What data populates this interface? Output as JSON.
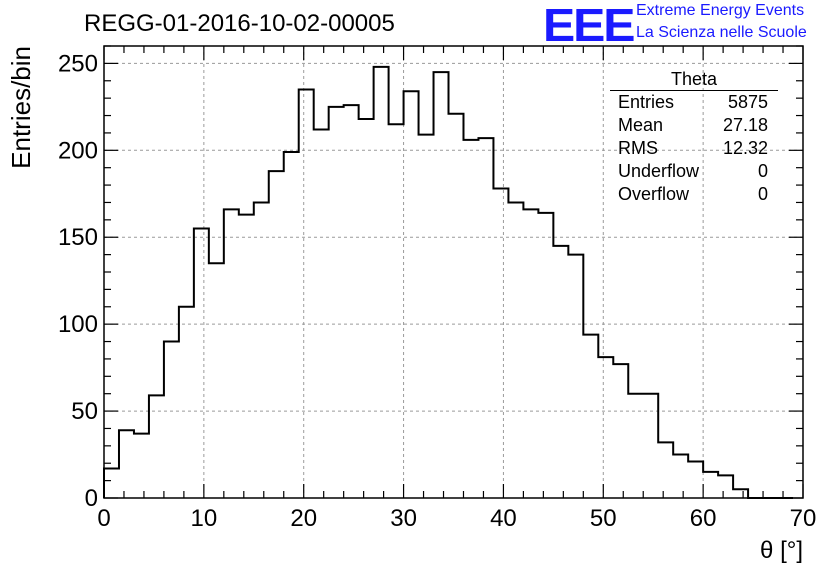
{
  "title": "REGG-01-2016-10-02-00005",
  "logo": {
    "letters": "EEE",
    "line1": "Extreme Energy Events",
    "line2": "La Scienza nelle Scuole",
    "color": "#1a1aff"
  },
  "stats": {
    "title": "Theta",
    "rows": [
      {
        "label": "Entries",
        "value": "5875"
      },
      {
        "label": "Mean",
        "value": "27.18"
      },
      {
        "label": "RMS",
        "value": "12.32"
      },
      {
        "label": "Underflow",
        "value": "0"
      },
      {
        "label": "Overflow",
        "value": "0"
      }
    ]
  },
  "chart_data": {
    "type": "bar",
    "style": "step-histogram",
    "title": "REGG-01-2016-10-02-00005",
    "xlabel": "θ [°]",
    "ylabel": "Entries/bin",
    "xlim": [
      0,
      70
    ],
    "ylim": [
      0,
      260
    ],
    "xticks": [
      0,
      10,
      20,
      30,
      40,
      50,
      60,
      70
    ],
    "yticks": [
      0,
      50,
      100,
      150,
      200,
      250
    ],
    "grid": true,
    "bin_width": 1.5,
    "bin_edges_start": 0,
    "values": [
      17,
      39,
      37,
      59,
      90,
      110,
      155,
      135,
      166,
      163,
      170,
      188,
      199,
      235,
      212,
      225,
      226,
      218,
      248,
      215,
      234,
      209,
      245,
      221,
      206,
      207,
      178,
      170,
      166,
      164,
      145,
      140,
      94,
      81,
      77,
      60,
      60,
      32,
      25,
      21,
      15,
      13,
      5,
      0,
      0,
      0
    ]
  }
}
